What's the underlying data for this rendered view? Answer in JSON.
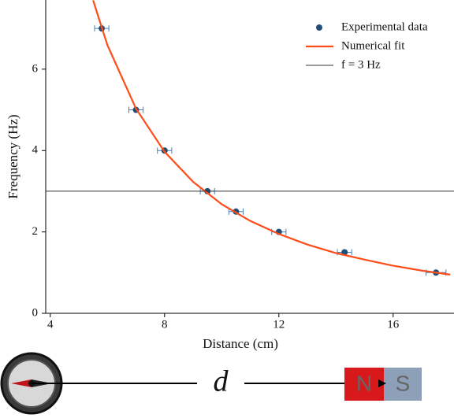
{
  "chart_data": {
    "type": "scatter",
    "x_label": "Distance (cm)",
    "y_label": "Frequency (Hz)",
    "xlim": [
      3.84,
      18.13
    ],
    "ylim": [
      0,
      7.7
    ],
    "xticks": [
      4,
      8,
      12,
      16
    ],
    "yticks": [
      0,
      2,
      4,
      6
    ],
    "legend": "upper right",
    "series": [
      {
        "name": "Experimental data",
        "type": "scatter",
        "color": "#1f4e79",
        "x": [
          5.8,
          7,
          8,
          9.5,
          10.5,
          12,
          14.3,
          17.5
        ],
        "values": [
          7,
          5,
          4,
          3,
          2.5,
          2,
          1.5,
          1
        ],
        "xerr": [
          0.25,
          0.25,
          0.25,
          0.25,
          0.25,
          0.25,
          0.25,
          0.35
        ]
      },
      {
        "name": "Numerical fit",
        "type": "line",
        "color": "#ff4d1a",
        "x": [
          5.5,
          6,
          7,
          8,
          9,
          10,
          11,
          12,
          13,
          14,
          15,
          16,
          17,
          18
        ],
        "values": [
          7.69,
          6.59,
          5.03,
          3.97,
          3.23,
          2.68,
          2.27,
          1.95,
          1.69,
          1.48,
          1.32,
          1.17,
          1.05,
          0.95
        ]
      },
      {
        "name": "f = 3 Hz",
        "type": "hline",
        "color": "#333333",
        "value": 3
      }
    ]
  },
  "diagram": {
    "distance": "d",
    "north": "N",
    "south": "S"
  }
}
